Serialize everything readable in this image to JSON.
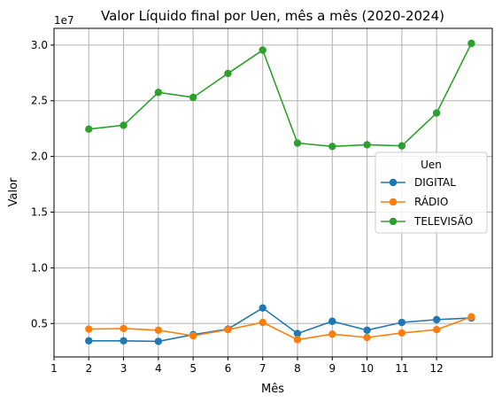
{
  "chart_data": {
    "type": "line",
    "title": "Valor Líquido final por Uen, mês a mês (2020-2024)",
    "xlabel": "Mês",
    "ylabel": "Valor",
    "y_offset_label": "1e7",
    "x_tick_labels": [
      "1",
      "2",
      "3",
      "4",
      "5",
      "6",
      "7",
      "8",
      "9",
      "10",
      "11",
      "12"
    ],
    "y_tick_labels": [
      "0.5",
      "1.0",
      "1.5",
      "2.0",
      "2.5",
      "3.0"
    ],
    "y_ticks": [
      0.5,
      1.0,
      1.5,
      2.0,
      2.5,
      3.0
    ],
    "xlim": [
      1,
      13.6
    ],
    "ylim": [
      0.2,
      3.15
    ],
    "grid": true,
    "legend_title": "Uen",
    "legend_position": "center-right",
    "x": [
      2,
      3,
      4,
      5,
      6,
      7,
      8,
      9,
      10,
      11,
      12,
      13
    ],
    "series": [
      {
        "name": "DIGITAL",
        "color": "#1f77b4",
        "values": [
          0.345,
          0.345,
          0.34,
          0.4,
          0.45,
          0.64,
          0.41,
          0.52,
          0.44,
          0.51,
          0.535,
          0.55
        ]
      },
      {
        "name": "RÁDIO",
        "color": "#ff7f0e",
        "values": [
          0.45,
          0.455,
          0.44,
          0.39,
          0.445,
          0.51,
          0.355,
          0.405,
          0.375,
          0.415,
          0.445,
          0.56
        ]
      },
      {
        "name": "TELEVISÃO",
        "color": "#2ca02c",
        "values": [
          2.245,
          2.28,
          2.575,
          2.53,
          2.745,
          2.955,
          2.12,
          2.09,
          2.105,
          2.095,
          2.39,
          3.015
        ]
      }
    ]
  }
}
